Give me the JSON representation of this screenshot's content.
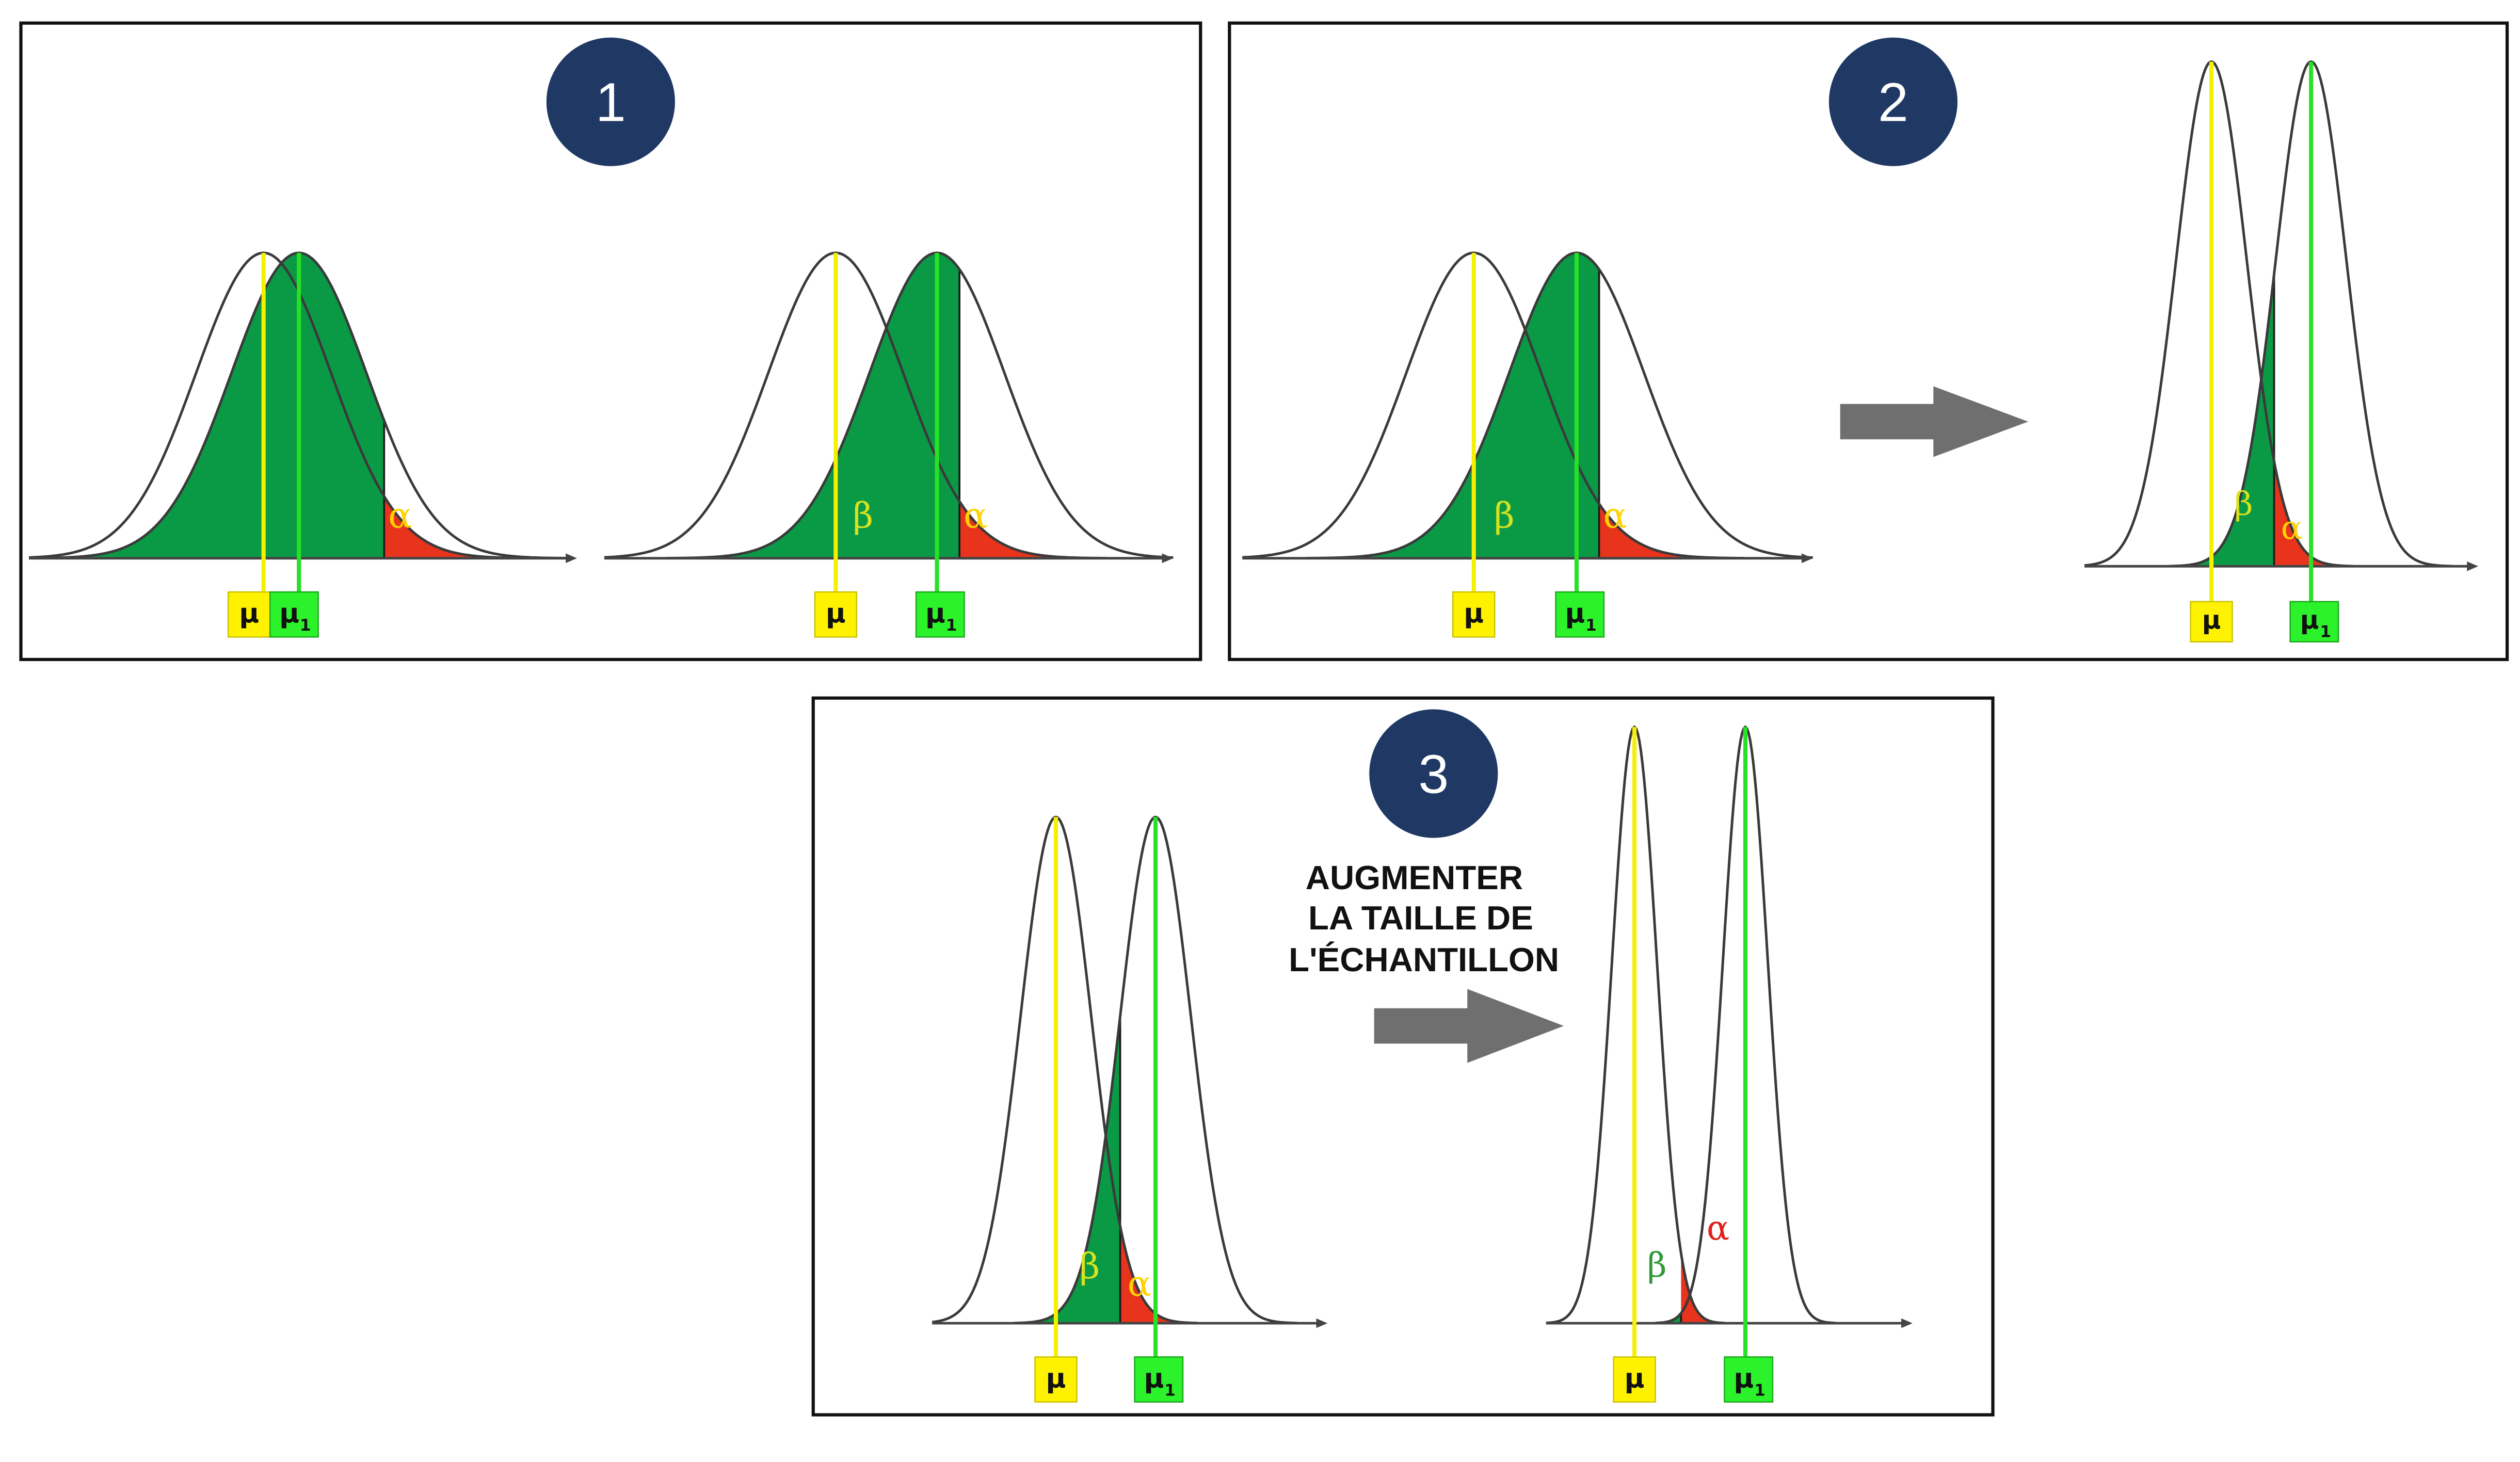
{
  "panels": [
    {
      "number": "1",
      "diagrams": [
        {
          "mu_label": "μ",
          "mu1_label": "μ",
          "mu1_sub": "1",
          "beta_label": "",
          "alpha_label": "α"
        },
        {
          "mu_label": "μ",
          "mu1_label": "μ",
          "mu1_sub": "1",
          "beta_label": "β",
          "alpha_label": "α"
        }
      ]
    },
    {
      "number": "2",
      "diagrams": [
        {
          "mu_label": "μ",
          "mu1_label": "μ",
          "mu1_sub": "1",
          "beta_label": "β",
          "alpha_label": "α"
        },
        {
          "mu_label": "μ",
          "mu1_label": "μ",
          "mu1_sub": "1",
          "beta_label": "β",
          "alpha_label": "α"
        }
      ]
    },
    {
      "number": "3",
      "caption_lines": [
        "AUGMENTER",
        "LA TAILLE DE",
        "L'ÉCHANTILLON"
      ],
      "diagrams": [
        {
          "mu_label": "μ",
          "mu1_label": "μ",
          "mu1_sub": "1",
          "beta_label": "β",
          "alpha_label": "α"
        },
        {
          "mu_label": "μ",
          "mu1_label": "μ",
          "mu1_sub": "1",
          "beta_label": "β",
          "alpha_label": "α"
        }
      ]
    }
  ],
  "colors": {
    "beta_fill": "#0a9a46",
    "alpha_fill": "#e8341c",
    "mu_line": "#f5f000",
    "mu1_line": "#27e127",
    "mu_box": "#fff200",
    "mu1_box": "#2cf22c",
    "badge": "#1f3864",
    "arrow": "#6f6f6f",
    "curve": "#3a3a3a",
    "alpha_text_on_red": "#ffd200",
    "beta_text_on_green": "#d8e21e",
    "beta_text_on_white": "#2f9a3a",
    "alpha_text_on_white": "#e0201a"
  }
}
